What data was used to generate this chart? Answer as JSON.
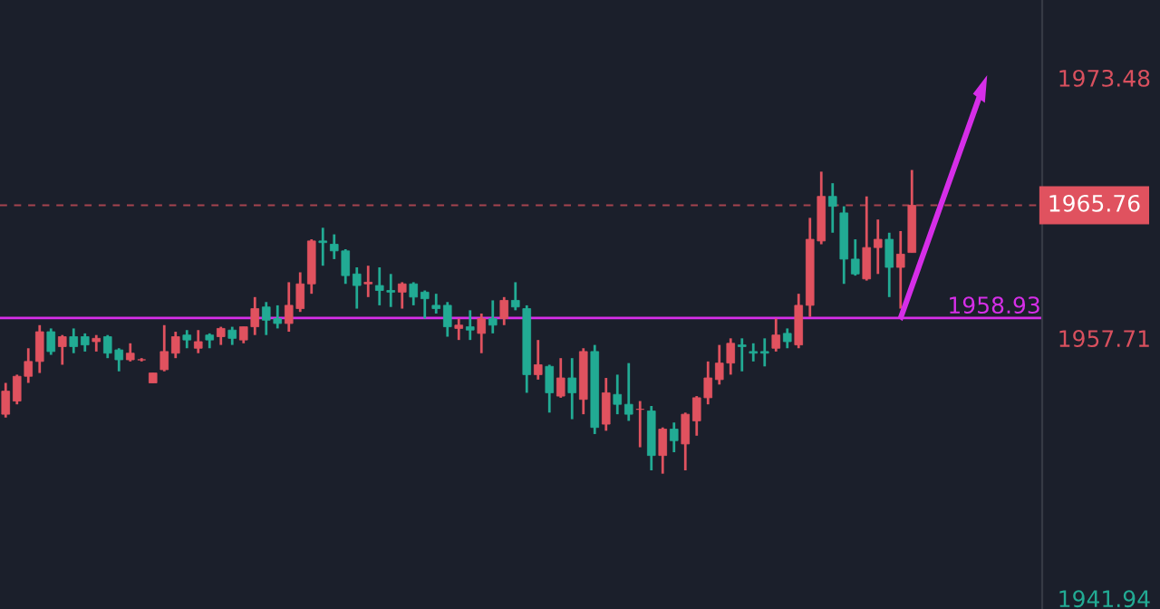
{
  "chart_data": {
    "type": "candlestick",
    "categories": [
      null,
      null,
      null,
      null,
      null,
      null,
      null,
      null,
      null,
      null,
      null,
      null,
      null,
      null,
      null,
      null,
      null,
      null,
      null,
      null,
      null,
      null,
      null,
      null,
      null,
      null,
      null,
      null,
      null,
      null,
      null,
      null,
      null,
      null,
      null,
      null,
      null,
      null,
      null,
      null,
      null,
      null,
      null,
      null,
      null,
      null,
      null,
      null,
      null,
      null,
      null,
      null,
      null,
      null,
      null,
      null,
      null,
      null,
      null,
      null,
      null,
      null,
      null,
      null,
      null,
      null,
      null,
      null,
      null,
      null,
      null,
      null,
      null,
      null,
      null,
      null,
      null,
      null,
      null,
      null,
      null,
      null,
      null,
      null,
      null,
      null,
      null,
      null,
      null,
      null,
      null,
      null
    ],
    "ohlc": [
      [
        1953.1,
        1955.0,
        1952.9,
        1954.5
      ],
      [
        1953.9,
        1955.5,
        1953.7,
        1955.4
      ],
      [
        1955.4,
        1957.1,
        1955.0,
        1956.3
      ],
      [
        1956.3,
        1958.5,
        1955.6,
        1958.1
      ],
      [
        1958.1,
        1958.3,
        1956.7,
        1956.9
      ],
      [
        1957.2,
        1957.9,
        1956.1,
        1957.8
      ],
      [
        1957.8,
        1958.3,
        1956.8,
        1957.2
      ],
      [
        1957.8,
        1958.0,
        1956.9,
        1957.3
      ],
      [
        1957.5,
        1957.9,
        1956.9,
        1957.7
      ],
      [
        1957.8,
        1957.9,
        1956.5,
        1956.8
      ],
      [
        1957.0,
        1957.1,
        1955.7,
        1956.4
      ],
      [
        1956.4,
        1957.4,
        1956.3,
        1956.8
      ],
      [
        1956.4,
        1956.5,
        1956.3,
        1956.4
      ],
      [
        1955.0,
        1955.6,
        1955.0,
        1955.6
      ],
      [
        1955.8,
        1958.5,
        1955.7,
        1956.9
      ],
      [
        1956.8,
        1958.1,
        1956.5,
        1957.8
      ],
      [
        1957.9,
        1958.2,
        1957.1,
        1957.6
      ],
      [
        1957.1,
        1958.2,
        1956.8,
        1957.5
      ],
      [
        1957.9,
        1958.0,
        1957.1,
        1957.6
      ],
      [
        1957.8,
        1958.4,
        1957.3,
        1958.3
      ],
      [
        1958.2,
        1958.4,
        1957.3,
        1957.7
      ],
      [
        1957.6,
        1958.4,
        1957.4,
        1958.4
      ],
      [
        1958.4,
        1960.2,
        1957.9,
        1959.5
      ],
      [
        1959.6,
        1959.9,
        1957.9,
        1958.8
      ],
      [
        1958.9,
        1959.7,
        1958.3,
        1958.6
      ],
      [
        1958.6,
        1961.1,
        1958.1,
        1959.7
      ],
      [
        1959.5,
        1961.7,
        1959.3,
        1961.0
      ],
      [
        1961.0,
        1963.7,
        1960.4,
        1963.6
      ],
      [
        1963.6,
        1964.4,
        1962.1,
        1963.5
      ],
      [
        1963.4,
        1964.0,
        1962.5,
        1963.0
      ],
      [
        1963.0,
        1963.1,
        1961.0,
        1961.5
      ],
      [
        1961.6,
        1962.0,
        1959.5,
        1960.9
      ],
      [
        1961.0,
        1962.1,
        1960.2,
        1961.1
      ],
      [
        1960.9,
        1962.0,
        1959.7,
        1960.6
      ],
      [
        1960.6,
        1961.6,
        1959.6,
        1960.5
      ],
      [
        1960.5,
        1961.1,
        1959.5,
        1961.0
      ],
      [
        1961.0,
        1961.1,
        1959.7,
        1960.2
      ],
      [
        1960.5,
        1960.6,
        1958.9,
        1960.1
      ],
      [
        1959.7,
        1960.4,
        1959.2,
        1959.5
      ],
      [
        1959.7,
        1959.9,
        1957.8,
        1958.4
      ],
      [
        1958.3,
        1958.9,
        1957.6,
        1958.5
      ],
      [
        1958.4,
        1959.4,
        1957.6,
        1958.2
      ],
      [
        1958.0,
        1959.2,
        1956.8,
        1958.9
      ],
      [
        1958.9,
        1960.0,
        1958.0,
        1958.5
      ],
      [
        1958.9,
        1960.2,
        1958.5,
        1960.0
      ],
      [
        1960.0,
        1961.1,
        1959.4,
        1959.6
      ],
      [
        1959.5,
        1959.7,
        1954.4,
        1955.5
      ],
      [
        1955.5,
        1957.6,
        1955.2,
        1956.1
      ],
      [
        1956.0,
        1956.1,
        1953.2,
        1954.4
      ],
      [
        1954.2,
        1956.5,
        1954.1,
        1955.3
      ],
      [
        1955.3,
        1956.5,
        1952.8,
        1954.4
      ],
      [
        1954.0,
        1957.1,
        1953.1,
        1956.9
      ],
      [
        1956.9,
        1957.3,
        1951.9,
        1952.3
      ],
      [
        1952.5,
        1955.3,
        1952.1,
        1954.4
      ],
      [
        1954.3,
        1955.5,
        1953.1,
        1953.7
      ],
      [
        1953.7,
        1956.2,
        1952.7,
        1953.1
      ],
      [
        1953.4,
        1953.9,
        1951.1,
        1953.4
      ],
      [
        1953.3,
        1953.6,
        1949.7,
        1950.6
      ],
      [
        1950.6,
        1952.3,
        1949.5,
        1952.2
      ],
      [
        1952.2,
        1952.6,
        1950.8,
        1951.5
      ],
      [
        1951.3,
        1953.2,
        1949.7,
        1953.1
      ],
      [
        1952.7,
        1954.2,
        1951.8,
        1954.1
      ],
      [
        1954.1,
        1956.3,
        1953.7,
        1955.3
      ],
      [
        1955.2,
        1957.3,
        1954.9,
        1956.2
      ],
      [
        1956.2,
        1957.7,
        1955.5,
        1957.4
      ],
      [
        1957.3,
        1957.7,
        1955.7,
        1957.2
      ],
      [
        1956.9,
        1957.4,
        1956.3,
        1956.8
      ],
      [
        1956.9,
        1957.7,
        1956.0,
        1956.8
      ],
      [
        1957.1,
        1958.9,
        1956.9,
        1957.9
      ],
      [
        1958.0,
        1958.3,
        1957.1,
        1957.5
      ],
      [
        1957.3,
        1960.4,
        1957.1,
        1959.7
      ],
      [
        1959.7,
        1965.0,
        1959.0,
        1963.7
      ],
      [
        1963.6,
        1967.8,
        1963.4,
        1966.3
      ],
      [
        1966.3,
        1967.1,
        1964.1,
        1965.7
      ],
      [
        1965.3,
        1965.7,
        1961.0,
        1962.5
      ],
      [
        1962.5,
        1963.7,
        1961.5,
        1961.6
      ],
      [
        1961.3,
        1966.3,
        1961.2,
        1963.2
      ],
      [
        1963.2,
        1964.9,
        1961.6,
        1963.7
      ],
      [
        1963.7,
        1964.1,
        1960.2,
        1962.0
      ],
      [
        1962.0,
        1964.2,
        1959.5,
        1962.8
      ],
      [
        1962.9,
        1967.9,
        1962.9,
        1965.76
      ],
      null,
      null,
      null,
      null,
      null,
      null,
      null,
      null,
      null,
      null,
      null
    ],
    "colors": [
      "#e0525f",
      "#e0525f",
      "#e0525f",
      "#e0525f",
      "#22ab94",
      "#e0525f",
      "#22ab94",
      "#22ab94",
      "#e0525f",
      "#22ab94",
      "#22ab94",
      "#e0525f",
      "#e0525f",
      "#e0525f",
      "#e0525f",
      "#e0525f",
      "#22ab94",
      "#e0525f",
      "#22ab94",
      "#e0525f",
      "#22ab94",
      "#e0525f",
      "#e0525f",
      "#22ab94",
      "#22ab94",
      "#e0525f",
      "#e0525f",
      "#e0525f",
      "#22ab94",
      "#22ab94",
      "#22ab94",
      "#22ab94",
      "#e0525f",
      "#22ab94",
      "#22ab94",
      "#e0525f",
      "#22ab94",
      "#22ab94",
      "#22ab94",
      "#22ab94",
      "#e0525f",
      "#22ab94",
      "#e0525f",
      "#22ab94",
      "#e0525f",
      "#22ab94",
      "#22ab94",
      "#e0525f",
      "#22ab94",
      "#e0525f",
      "#22ab94",
      "#e0525f",
      "#22ab94",
      "#e0525f",
      "#22ab94",
      "#22ab94",
      "#e0525f",
      "#22ab94",
      "#e0525f",
      "#22ab94",
      "#e0525f",
      "#e0525f",
      "#e0525f",
      "#e0525f",
      "#e0525f",
      "#22ab94",
      "#22ab94",
      "#22ab94",
      "#e0525f",
      "#22ab94",
      "#e0525f",
      "#e0525f",
      "#e0525f",
      "#22ab94",
      "#22ab94",
      "#22ab94",
      "#e0525f",
      "#e0525f",
      "#22ab94",
      "#e0525f",
      "#e0525f",
      null,
      null,
      null,
      null,
      null,
      null,
      null,
      null,
      null,
      null,
      null
    ],
    "ylim": [
      1941.3,
      1978.2
    ],
    "yticks": [
      1973.48,
      1957.71,
      1941.94
    ],
    "ref_lines": [
      {
        "axis": "y",
        "value": 1958.93,
        "label": "1958.93",
        "color": "#d62ee8",
        "line_style": "solid"
      },
      {
        "axis": "y",
        "value": 1965.76,
        "label": "1965.76",
        "color": "#e0525f",
        "line_style": "dashed"
      }
    ],
    "grid": false,
    "legend": false
  }
}
